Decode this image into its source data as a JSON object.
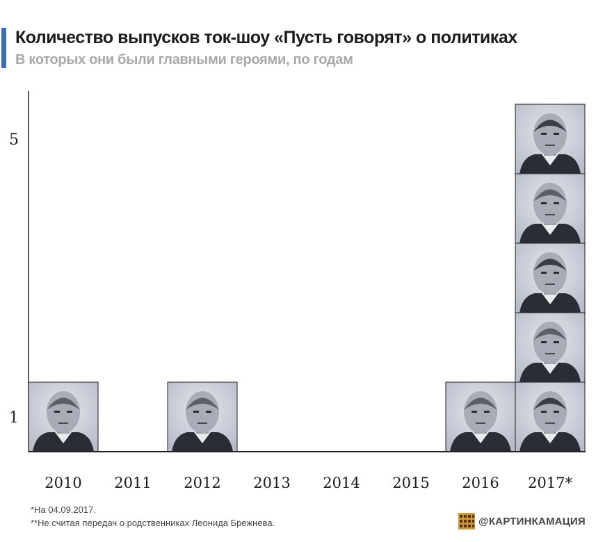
{
  "header": {
    "title": "Количество выпусков ток-шоу «Пусть говорят» о политиках",
    "subtitle": "В которых они были главными героями, по годам"
  },
  "footnotes": {
    "date_note": "*На 04.09.2017.",
    "exclusion_note": "**Не считая передач о родственниках Леонида Брежнева."
  },
  "brand": {
    "label": "@КАРТИНКАМАЦИЯ"
  },
  "colors": {
    "accent": "#3a6fb5",
    "axis": "#222222",
    "tile_bg": "#cfd3dc"
  },
  "chart_data": {
    "type": "bar",
    "categories": [
      "2010",
      "2011",
      "2012",
      "2013",
      "2014",
      "2015",
      "2016",
      "2017*"
    ],
    "values": [
      1,
      0,
      1,
      0,
      0,
      0,
      1,
      5
    ],
    "y_ticks": [
      1,
      5
    ],
    "ylim": [
      0,
      5
    ],
    "stack_items": [
      [
        "portrait-1"
      ],
      [],
      [
        "portrait-2"
      ],
      [],
      [],
      [],
      [
        "portrait-3"
      ],
      [
        "portrait-2",
        "portrait-4",
        "portrait-5",
        "portrait-6",
        "portrait-7"
      ]
    ]
  }
}
